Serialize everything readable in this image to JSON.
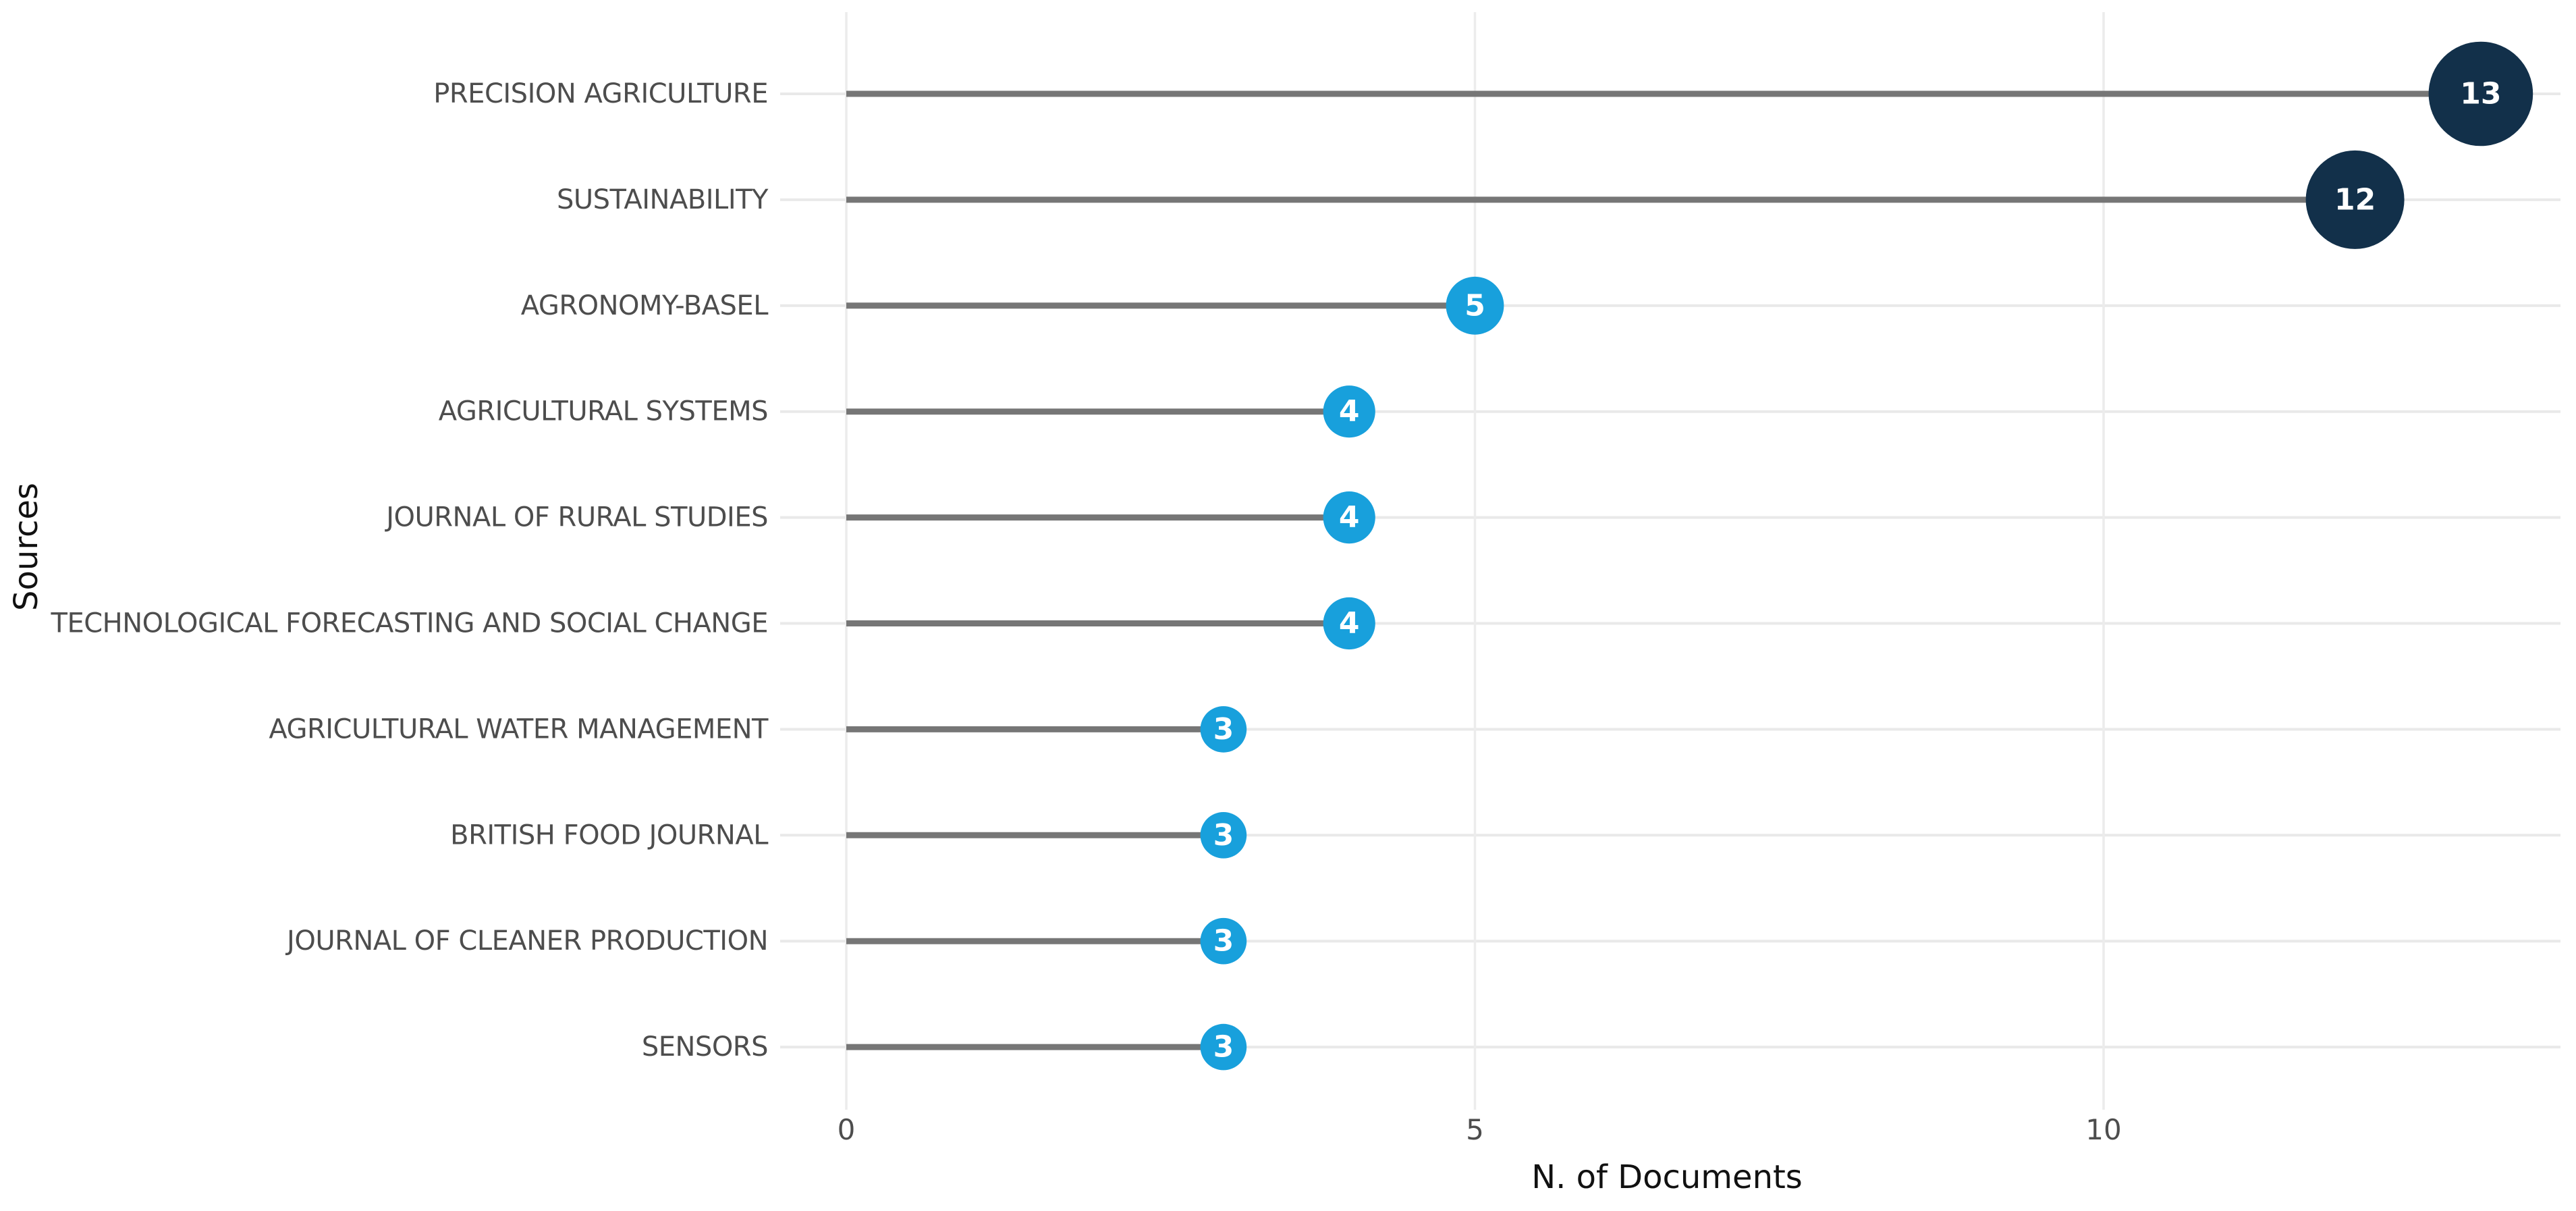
{
  "figure": {
    "x_axis_title": "N. of Documents",
    "y_axis_title": "Sources",
    "colors": {
      "bubble_small": "#18a0dc",
      "bubble_large": "#12304a",
      "stem": "#767676",
      "row_line": "#e9e9e9",
      "grid_line": "#ececec",
      "source_label_text": "#4d4d4d",
      "tick_text": "#4d4d4d",
      "axis_title_text": "#111111",
      "bubble_value_text": "#ffffff"
    }
  },
  "chart_data": {
    "type": "bar",
    "subtype": "lollipop",
    "orientation": "horizontal",
    "title": "",
    "xlabel": "N. of Documents",
    "ylabel": "Sources",
    "categories": [
      "PRECISION AGRICULTURE",
      "SUSTAINABILITY",
      "AGRONOMY-BASEL",
      "AGRICULTURAL SYSTEMS",
      "JOURNAL OF RURAL STUDIES",
      "TECHNOLOGICAL FORECASTING AND SOCIAL CHANGE",
      "AGRICULTURAL WATER MANAGEMENT",
      "BRITISH FOOD JOURNAL",
      "JOURNAL OF CLEANER PRODUCTION",
      "SENSORS"
    ],
    "values": [
      13,
      12,
      5,
      4,
      4,
      4,
      3,
      3,
      3,
      3
    ],
    "point_colors": [
      "#12304a",
      "#12304a",
      "#18a0dc",
      "#18a0dc",
      "#18a0dc",
      "#18a0dc",
      "#18a0dc",
      "#18a0dc",
      "#18a0dc",
      "#18a0dc"
    ],
    "xticks": [
      0,
      5,
      10
    ],
    "xlim": [
      0,
      13.6
    ],
    "grid": "vertical gridlines at x ticks; light horizontal line per category row",
    "legend": "none"
  }
}
